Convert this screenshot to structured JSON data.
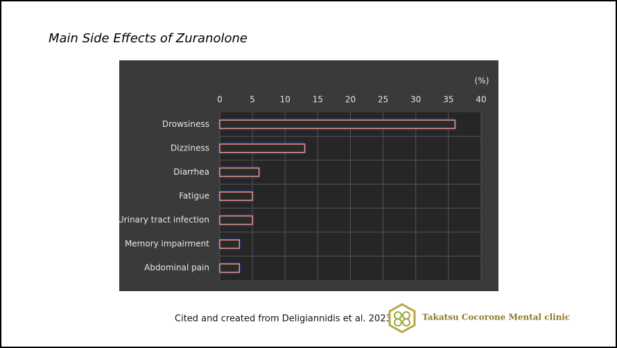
{
  "chart_data": {
    "type": "barh",
    "title": "Main Side Effects of Zuranolone",
    "xlabel": "(%)",
    "categories": [
      "Drowsiness",
      "Dizziness",
      "Diarrhea",
      "Fatigue",
      "Urinary tract infection",
      "Memory impairment",
      "Abdominal pain"
    ],
    "values": [
      36,
      13,
      6,
      5,
      5,
      3,
      3
    ],
    "color": "#e8957a",
    "xlim": [
      0,
      40
    ],
    "xticks": [
      0,
      5,
      10,
      15,
      20,
      25,
      30,
      35,
      40
    ],
    "grid": true
  },
  "footer": {
    "citation": "Cited and created from Deligiannidis et al. 2023",
    "clinic": "Takatsu Cocorone Mental clinic"
  }
}
